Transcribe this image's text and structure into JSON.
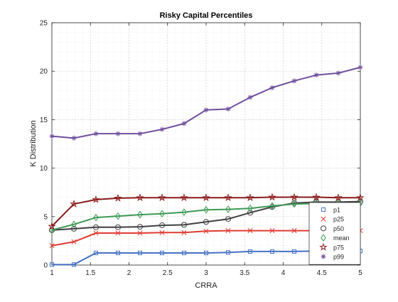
{
  "chart_data": {
    "type": "line",
    "title": "Risky Capital Percentiles",
    "xlabel": "CRRA",
    "ylabel": "K Distribution",
    "xlim": [
      1,
      5
    ],
    "ylim": [
      0,
      25
    ],
    "xticks": [
      1,
      1.5,
      2,
      2.5,
      3,
      3.5,
      4,
      4.5,
      5
    ],
    "yticks": [
      0,
      5,
      10,
      15,
      20,
      25
    ],
    "grid": true,
    "legend_position": "bottom-right-inside",
    "x": [
      1,
      1.286,
      1.571,
      1.857,
      2.143,
      2.429,
      2.714,
      3,
      3.286,
      3.571,
      3.857,
      4.143,
      4.429,
      4.714,
      5
    ],
    "series": [
      {
        "name": "p1",
        "color": "#4472c4",
        "marker": "square",
        "values": [
          0.05,
          0.05,
          1.25,
          1.25,
          1.25,
          1.25,
          1.25,
          1.25,
          1.3,
          1.4,
          1.4,
          1.4,
          1.45,
          1.45,
          1.45
        ]
      },
      {
        "name": "p25",
        "color": "#e03c31",
        "marker": "x",
        "values": [
          2.0,
          2.4,
          3.3,
          3.3,
          3.3,
          3.35,
          3.35,
          3.5,
          3.55,
          3.55,
          3.55,
          3.55,
          3.55,
          3.55,
          3.55
        ]
      },
      {
        "name": "p50",
        "color": "#404040",
        "marker": "circle",
        "values": [
          3.6,
          3.75,
          3.9,
          3.9,
          3.95,
          4.1,
          4.15,
          4.45,
          4.75,
          5.4,
          6.0,
          6.4,
          6.5,
          6.5,
          6.55
        ]
      },
      {
        "name": "mean",
        "color": "#3d9a55",
        "marker": "diamond",
        "values": [
          3.6,
          4.2,
          4.9,
          5.05,
          5.2,
          5.3,
          5.45,
          5.7,
          5.75,
          5.85,
          6.1,
          6.3,
          6.35,
          6.4,
          6.4
        ]
      },
      {
        "name": "p75",
        "color": "#8b1a1a",
        "marker": "star",
        "values": [
          4.0,
          6.3,
          6.75,
          6.9,
          6.95,
          6.95,
          6.95,
          6.95,
          6.95,
          6.95,
          7.0,
          7.0,
          7.0,
          6.95,
          6.95
        ]
      },
      {
        "name": "p99",
        "color": "#6f4f9e",
        "marker": "asterisk",
        "values": [
          13.3,
          13.1,
          13.55,
          13.55,
          13.55,
          14.0,
          14.6,
          16.0,
          16.1,
          17.3,
          18.3,
          19.0,
          19.6,
          19.8,
          20.4
        ]
      }
    ]
  }
}
